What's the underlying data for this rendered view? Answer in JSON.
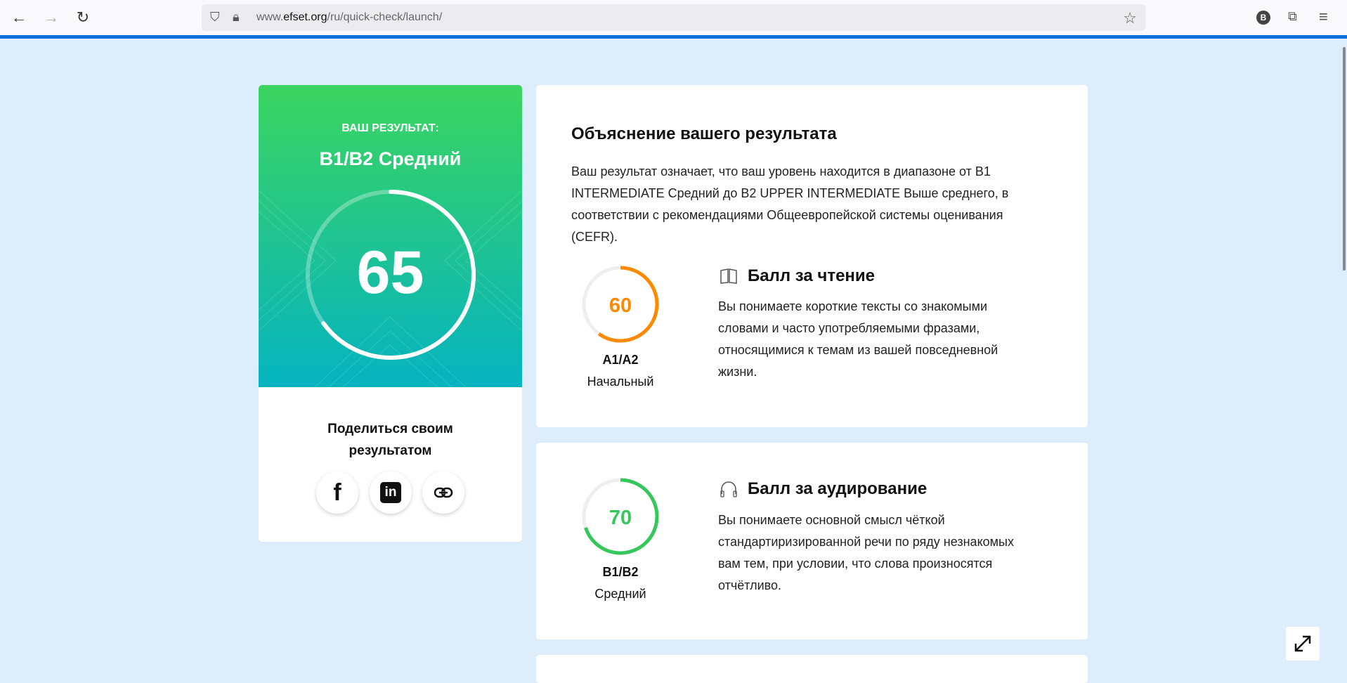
{
  "browser": {
    "url_prefix": "www.",
    "url_domain": "efset.org",
    "url_path": "/ru/quick-check/launch/",
    "profile_initial": "B"
  },
  "result": {
    "label": "ВАШ РЕЗУЛЬТАТ:",
    "level": "B1/B2 Средний",
    "score": "65",
    "score_percent": 65,
    "share_title_1": "Поделиться своим",
    "share_title_2": "результатом"
  },
  "explanation": {
    "title": "Объяснение вашего результата",
    "lines": [
      "Ваш результат означает, что ваш уровень находится в диапазоне от B1",
      "INTERMEDIATE Средний до B2 UPPER INTERMEDIATE Выше среднего, в",
      "соответствии с рекомендациями Общеевропейской системы оценивания",
      "(CEFR)."
    ]
  },
  "reading": {
    "title": "Балл за чтение",
    "score": "60",
    "score_percent": 60,
    "level": "A1/A2",
    "level_name": "Начальный",
    "color": "#ff8a00",
    "lines": [
      "Вы понимаете короткие тексты со знакомыми",
      "словами и часто употребляемыми фразами,",
      "относящимися к темам из вашей повседневной",
      "жизни."
    ]
  },
  "listening": {
    "title": "Балл за аудирование",
    "score": "70",
    "score_percent": 70,
    "level": "B1/B2",
    "level_name": "Средний",
    "color": "#35c75a",
    "lines": [
      "Вы понимаете основной смысл чёткой",
      "стандартиризированной речи по ряду незнакомых",
      "вам тем, при условии, что слова произносятся",
      "отчётливо."
    ]
  }
}
